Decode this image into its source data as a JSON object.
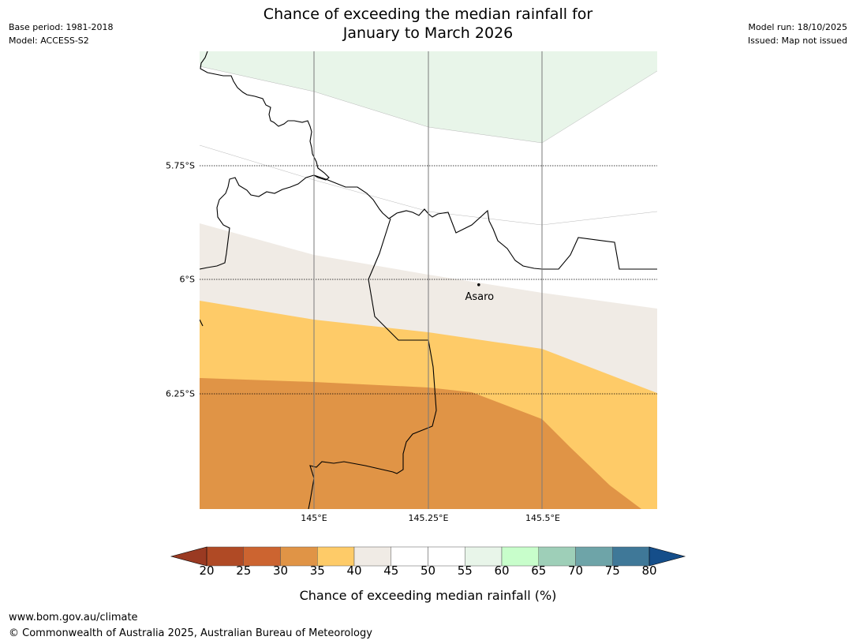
{
  "header": {
    "base_period": "Base period: 1981-2018",
    "model": "Model: ACCESS-S2",
    "model_run": "Model run: 18/10/2025",
    "issued": "Issued: Map not issued",
    "title_line1": "Chance of exceeding the median rainfall for",
    "title_line2": "January to March 2026"
  },
  "map": {
    "lat_labels": [
      "5.75°S",
      "6°S",
      "6.25°S"
    ],
    "lon_labels": [
      "145°E",
      "145.25°E",
      "145.5°E"
    ],
    "place": {
      "name": "Asaro",
      "lon": 145.36,
      "lat": -6.01
    },
    "extent": {
      "lon_min": 144.75,
      "lon_max": 145.75,
      "lat_min": -6.5,
      "lat_max": -5.5
    }
  },
  "chart_data": {
    "type": "heatmap",
    "title": "Chance of exceeding the median rainfall for January to March 2026",
    "variable": "Chance of exceeding median rainfall (%)",
    "bins": [
      {
        "range": [
          20,
          25
        ],
        "color": "#b04a25"
      },
      {
        "range": [
          25,
          30
        ],
        "color": "#cc6430"
      },
      {
        "range": [
          30,
          35
        ],
        "color": "#e09446"
      },
      {
        "range": [
          35,
          40
        ],
        "color": "#fecb68"
      },
      {
        "range": [
          40,
          45
        ],
        "color": "#f0ebe5"
      },
      {
        "range": [
          45,
          50
        ],
        "color": "#ffffff"
      },
      {
        "range": [
          50,
          55
        ],
        "color": "#ffffff"
      },
      {
        "range": [
          55,
          60
        ],
        "color": "#e8f5e9"
      },
      {
        "range": [
          60,
          65
        ],
        "color": "#c8fecb"
      },
      {
        "range": [
          65,
          70
        ],
        "color": "#9ecfb8"
      },
      {
        "range": [
          70,
          75
        ],
        "color": "#6ea4a8"
      },
      {
        "range": [
          75,
          80
        ],
        "color": "#3f7898"
      }
    ],
    "under_color": "#9a3a22",
    "over_color": "#154e8a",
    "tick_labels": [
      "20",
      "25",
      "30",
      "35",
      "40",
      "45",
      "50",
      "55",
      "60",
      "65",
      "70",
      "75",
      "80"
    ],
    "regions_visible": [
      {
        "category": "55-60",
        "location": "north"
      },
      {
        "category": "45-55",
        "location": "central-north"
      },
      {
        "category": "40-45",
        "location": "central"
      },
      {
        "category": "35-40",
        "location": "central-south"
      },
      {
        "category": "30-35",
        "location": "south"
      }
    ]
  },
  "colorbar": {
    "title": "Chance of exceeding median rainfall (%)"
  },
  "footer": {
    "url": "www.bom.gov.au/climate",
    "copyright": "© Commonwealth of Australia 2025, Australian Bureau of Meteorology"
  },
  "colors": {
    "grid_line": "#7a7a7a",
    "border_line": "#000000"
  }
}
